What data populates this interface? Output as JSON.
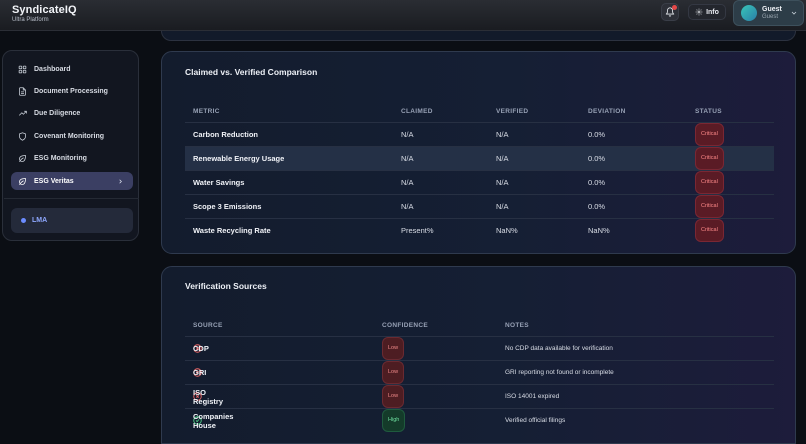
{
  "header": {
    "brand_name": "SyndicateIQ",
    "brand_sub": "Ultra Platform",
    "info_label": "Info",
    "user_name": "Guest",
    "user_role": "Guest"
  },
  "sidebar": {
    "items": [
      {
        "label": "Dashboard",
        "icon": "grid-icon"
      },
      {
        "label": "Document Processing",
        "icon": "document-icon"
      },
      {
        "label": "Due Diligence",
        "icon": "trend-icon"
      },
      {
        "label": "Covenant Monitoring",
        "icon": "shield-icon"
      },
      {
        "label": "ESG Monitoring",
        "icon": "leaf-icon"
      },
      {
        "label": "ESG Veritas",
        "icon": "leaf-icon",
        "active": true
      }
    ],
    "lma_label": "LMA"
  },
  "comparison": {
    "title": "Claimed vs. Verified Comparison",
    "columns": [
      "METRIC",
      "CLAIMED",
      "VERIFIED",
      "DEVIATION",
      "STATUS"
    ],
    "rows": [
      {
        "metric": "Carbon Reduction",
        "claimed": "N/A",
        "verified": "N/A",
        "deviation": "0.0%",
        "status": "Critical"
      },
      {
        "metric": "Renewable Energy Usage",
        "claimed": "N/A",
        "verified": "N/A",
        "deviation": "0.0%",
        "status": "Critical"
      },
      {
        "metric": "Water Savings",
        "claimed": "N/A",
        "verified": "N/A",
        "deviation": "0.0%",
        "status": "Critical"
      },
      {
        "metric": "Scope 3 Emissions",
        "claimed": "N/A",
        "verified": "N/A",
        "deviation": "0.0%",
        "status": "Critical"
      },
      {
        "metric": "Waste Recycling Rate",
        "claimed": "Present%",
        "verified": "NaN%",
        "deviation": "NaN%",
        "status": "Critical"
      }
    ]
  },
  "sources": {
    "title": "Verification Sources",
    "columns": [
      "SOURCE",
      "CONFIDENCE",
      "NOTES"
    ],
    "rows": [
      {
        "source": "CDP",
        "icon": "x-circle-icon",
        "confidence": "Low",
        "notes": "No CDP data available for verification"
      },
      {
        "source": "GRI",
        "icon": "x-circle-icon",
        "confidence": "Low",
        "notes": "GRI reporting not found or incomplete"
      },
      {
        "source": "ISO Registry",
        "icon": "x-circle-icon",
        "confidence": "Low",
        "notes": "ISO 14001 expired"
      },
      {
        "source": "Companies House",
        "icon": "check-circle-icon",
        "confidence": "High",
        "notes": "Verified official filings"
      }
    ]
  },
  "colors": {
    "critical": "#ff8a8a",
    "low": "#f08a8a",
    "high": "#6fe0a0",
    "accent": "#6b8cff"
  }
}
